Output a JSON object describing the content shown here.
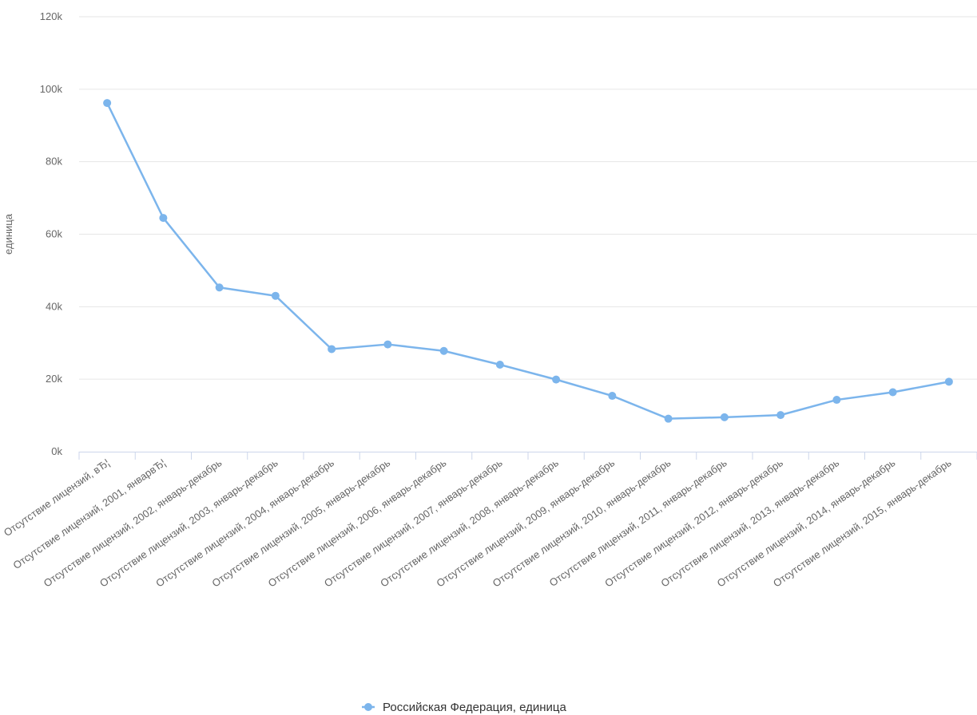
{
  "chart_data": {
    "type": "line",
    "ylabel": "единица",
    "xlabel": "",
    "title": "",
    "ylim": [
      0,
      120000
    ],
    "y_ticks": [
      {
        "value": 0,
        "label": "0k"
      },
      {
        "value": 20000,
        "label": "20k"
      },
      {
        "value": 40000,
        "label": "40k"
      },
      {
        "value": 60000,
        "label": "60k"
      },
      {
        "value": 80000,
        "label": "80k"
      },
      {
        "value": 100000,
        "label": "100k"
      },
      {
        "value": 120000,
        "label": "120k"
      }
    ],
    "categories": [
      "Отсутствие лицензий, вЂ¦",
      "Отсутствие лицензий, 2001, январвЂ¦",
      "Отсутствие лицензий, 2002, январь-декабрь",
      "Отсутствие лицензий, 2003, январь-декабрь",
      "Отсутствие лицензий, 2004, январь-декабрь",
      "Отсутствие лицензий, 2005, январь-декабрь",
      "Отсутствие лицензий, 2006, январь-декабрь",
      "Отсутствие лицензий, 2007, январь-декабрь",
      "Отсутствие лицензий, 2008, январь-декабрь",
      "Отсутствие лицензий, 2009, январь-декабрь",
      "Отсутствие лицензий, 2010, январь-декабрь",
      "Отсутствие лицензий, 2011, январь-декабрь",
      "Отсутствие лицензий, 2012, январь-декабрь",
      "Отсутствие лицензий, 2013, январь-декабрь",
      "Отсутствие лицензий, 2014, январь-декабрь",
      "Отсутствие лицензий, 2015, январь-декабрь"
    ],
    "series": [
      {
        "name": "Российская Федерация, единица",
        "color": "#7cb5ec",
        "values": [
          96200,
          64500,
          45300,
          43000,
          28300,
          29600,
          27800,
          24000,
          19900,
          15400,
          9100,
          9500,
          10100,
          14300,
          16400,
          19300
        ]
      }
    ],
    "grid": true,
    "legend_position": "bottom-center"
  }
}
